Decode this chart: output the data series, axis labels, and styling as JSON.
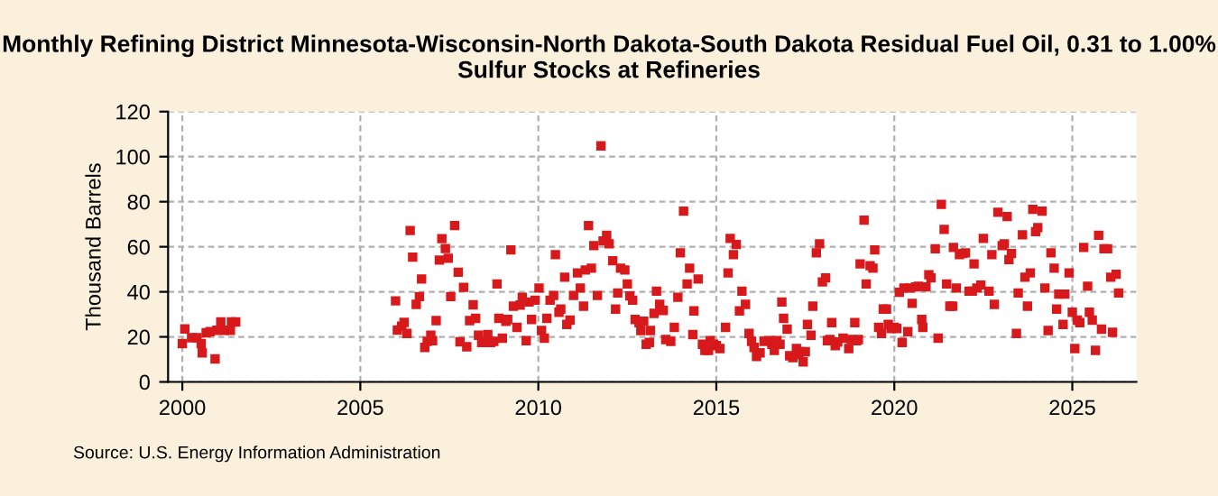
{
  "chart_data": {
    "type": "scatter",
    "title": "Monthly Refining District Minnesota-Wisconsin-North Dakota-South Dakota Residual Fuel Oil, 0.31 to 1.00% Sulfur Stocks at Refineries",
    "ylabel": "Thousand Barrels",
    "annotations": [
      "Source: U.S. Energy Information Administration"
    ],
    "xlim": [
      1999.6,
      2026.8
    ],
    "xticks": [
      2000,
      2005,
      2010,
      2015,
      2020,
      2025
    ],
    "ylim": [
      0,
      120
    ],
    "yticks": [
      0,
      20,
      40,
      60,
      80,
      100,
      120
    ],
    "grid": true,
    "marker": "square",
    "legend": false,
    "series": [
      {
        "color": "#d7191c",
        "x": [
          2000.0,
          2000.07,
          2000.26,
          2000.41,
          2000.53,
          2000.56,
          2000.67,
          2000.78,
          2000.92,
          2000.97,
          2001.08,
          2001.18,
          2001.35,
          2001.38,
          2001.5,
          2005.99,
          2006.04,
          2006.16,
          2006.23,
          2006.31,
          2006.4,
          2006.47,
          2006.57,
          2006.66,
          2006.72,
          2006.81,
          2006.88,
          2006.98,
          2007.03,
          2007.13,
          2007.22,
          2007.29,
          2007.39,
          2007.47,
          2007.54,
          2007.65,
          2007.75,
          2007.8,
          2007.9,
          2007.99,
          2008.07,
          2008.17,
          2008.24,
          2008.32,
          2008.41,
          2008.58,
          2008.66,
          2008.75,
          2008.84,
          2008.89,
          2008.99,
          2009.09,
          2009.14,
          2009.23,
          2009.3,
          2009.4,
          2009.49,
          2009.55,
          2009.66,
          2009.74,
          2009.81,
          2009.91,
          2010.02,
          2010.09,
          2010.17,
          2010.24,
          2010.33,
          2010.43,
          2010.48,
          2010.58,
          2010.63,
          2010.74,
          2010.8,
          2010.89,
          2010.99,
          2011.1,
          2011.18,
          2011.27,
          2011.32,
          2011.41,
          2011.49,
          2011.56,
          2011.66,
          2011.76,
          2011.82,
          2011.92,
          2011.99,
          2012.09,
          2012.17,
          2012.23,
          2012.31,
          2012.43,
          2012.5,
          2012.57,
          2012.65,
          2012.72,
          2012.83,
          2012.88,
          2012.96,
          2013.03,
          2013.12,
          2013.15,
          2013.25,
          2013.32,
          2013.41,
          2013.51,
          2013.58,
          2013.72,
          2013.82,
          2013.92,
          2013.99,
          2014.08,
          2014.18,
          2014.25,
          2014.34,
          2014.37,
          2014.49,
          2014.61,
          2014.68,
          2014.78,
          2014.83,
          2014.92,
          2015.0,
          2015.1,
          2015.26,
          2015.33,
          2015.39,
          2015.48,
          2015.56,
          2015.65,
          2015.72,
          2015.82,
          2015.92,
          2015.99,
          2016.06,
          2016.13,
          2016.23,
          2016.34,
          2016.48,
          2016.56,
          2016.63,
          2016.7,
          2016.79,
          2016.84,
          2016.89,
          2016.99,
          2017.06,
          2017.15,
          2017.25,
          2017.32,
          2017.37,
          2017.44,
          2017.5,
          2017.56,
          2017.66,
          2017.71,
          2017.81,
          2017.9,
          2017.98,
          2018.07,
          2018.12,
          2018.19,
          2018.24,
          2018.34,
          2018.41,
          2018.56,
          2018.72,
          2018.79,
          2018.89,
          2018.94,
          2018.99,
          2019.04,
          2019.15,
          2019.21,
          2019.32,
          2019.4,
          2019.45,
          2019.56,
          2019.64,
          2019.69,
          2019.78,
          2019.83,
          2019.91,
          2020.0,
          2020.07,
          2020.14,
          2020.22,
          2020.27,
          2020.38,
          2020.44,
          2020.5,
          2020.6,
          2020.68,
          2020.77,
          2020.8,
          2020.89,
          2020.97,
          2021.03,
          2021.15,
          2021.23,
          2021.32,
          2021.4,
          2021.47,
          2021.56,
          2021.64,
          2021.66,
          2021.74,
          2021.83,
          2021.93,
          2022.0,
          2022.1,
          2022.19,
          2022.24,
          2022.32,
          2022.43,
          2022.5,
          2022.66,
          2022.74,
          2022.81,
          2022.91,
          2023.03,
          2023.09,
          2023.17,
          2023.22,
          2023.29,
          2023.43,
          2023.48,
          2023.6,
          2023.67,
          2023.74,
          2023.82,
          2023.89,
          2023.97,
          2024.03,
          2024.15,
          2024.23,
          2024.32,
          2024.4,
          2024.49,
          2024.56,
          2024.62,
          2024.74,
          2024.79,
          2024.91,
          2025.0,
          2025.07,
          2025.14,
          2025.21,
          2025.32,
          2025.43,
          2025.48,
          2025.56,
          2025.65,
          2025.74,
          2025.82,
          2025.89,
          2025.99,
          2026.08,
          2026.13,
          2026.23,
          2026.3
        ],
        "values": [
          17,
          23.5,
          19.6,
          19.6,
          17,
          12.9,
          21.8,
          22.3,
          10.2,
          22.9,
          26.6,
          22.9,
          22.9,
          26.6,
          26.6,
          36,
          23,
          24.7,
          26.4,
          21.5,
          67.2,
          55.4,
          34.4,
          37.9,
          45.7,
          15.3,
          18,
          20.7,
          18.3,
          27.2,
          54.1,
          63.6,
          59.2,
          54.9,
          37.9,
          69.4,
          48.7,
          17.8,
          42,
          15.6,
          27.2,
          34.2,
          28.2,
          20.7,
          17.5,
          21,
          17.5,
          18,
          43.5,
          28.2,
          19.4,
          26.9,
          27.7,
          58.6,
          33.6,
          24.2,
          34.1,
          37.6,
          18.3,
          35.5,
          27.7,
          36.3,
          41.7,
          22.8,
          19.4,
          28.2,
          36.3,
          38.4,
          56.5,
          30.9,
          32.3,
          46.5,
          25.5,
          27.4,
          38.4,
          48.4,
          41.7,
          33.6,
          49.7,
          69.4,
          50.5,
          60.5,
          38.4,
          104.8,
          62.6,
          65.1,
          61.3,
          53.8,
          32.3,
          39.5,
          50.5,
          49.7,
          43.5,
          38.2,
          36.3,
          27.7,
          26.3,
          22.8,
          26.9,
          16.7,
          17.5,
          22.8,
          30.4,
          40.3,
          34.4,
          31.7,
          18.8,
          18,
          24.2,
          37.6,
          57.3,
          75.8,
          43.5,
          50.5,
          21,
          31.5,
          45.7,
          16.7,
          14,
          14,
          18.3,
          16.7,
          16.1,
          14.8,
          24.2,
          48.4,
          63.7,
          56.5,
          61,
          31.5,
          40.3,
          34.4,
          21.5,
          18,
          15.3,
          11.3,
          12.9,
          18,
          18.3,
          16.7,
          14,
          18.3,
          16.7,
          35.5,
          28.2,
          23.4,
          11.6,
          10.8,
          14.8,
          12.1,
          13.4,
          8.9,
          13.4,
          25.5,
          20.7,
          33.6,
          57.3,
          61.3,
          44.4,
          46.2,
          18.3,
          18.8,
          26.3,
          16.1,
          17.7,
          19.4,
          14.8,
          18.8,
          26.3,
          18.3,
          18.8,
          52.4,
          71.8,
          43.5,
          51.6,
          50.5,
          58.6,
          24.2,
          21.5,
          32.3,
          32.3,
          25.5,
          23.7,
          24.2,
          23.7,
          39.8,
          17.5,
          41.7,
          22.3,
          41.7,
          34.9,
          42.2,
          42.5,
          27.7,
          24.2,
          42.2,
          47.6,
          46.2,
          59.1,
          19.4,
          78.8,
          67.7,
          43.5,
          33.6,
          33.6,
          59.7,
          41.7,
          56.5,
          57,
          57.3,
          40.3,
          40.3,
          52.4,
          41.7,
          43,
          63.7,
          40.3,
          56.5,
          34.4,
          75.3,
          60.5,
          61.3,
          73.4,
          54.3,
          57,
          21.5,
          39.5,
          65.3,
          46.5,
          33.6,
          48.4,
          76.6,
          66.7,
          68.5,
          75.8,
          41.7,
          22.8,
          57.3,
          50.5,
          32.3,
          39,
          25.5,
          39,
          48.4,
          30.9,
          14.8,
          27.4,
          26.3,
          59.7,
          42.5,
          30.9,
          27.4,
          14,
          65.1,
          23.4,
          59.1,
          59.1,
          46.5,
          22,
          47.8,
          39.5
        ]
      }
    ]
  }
}
